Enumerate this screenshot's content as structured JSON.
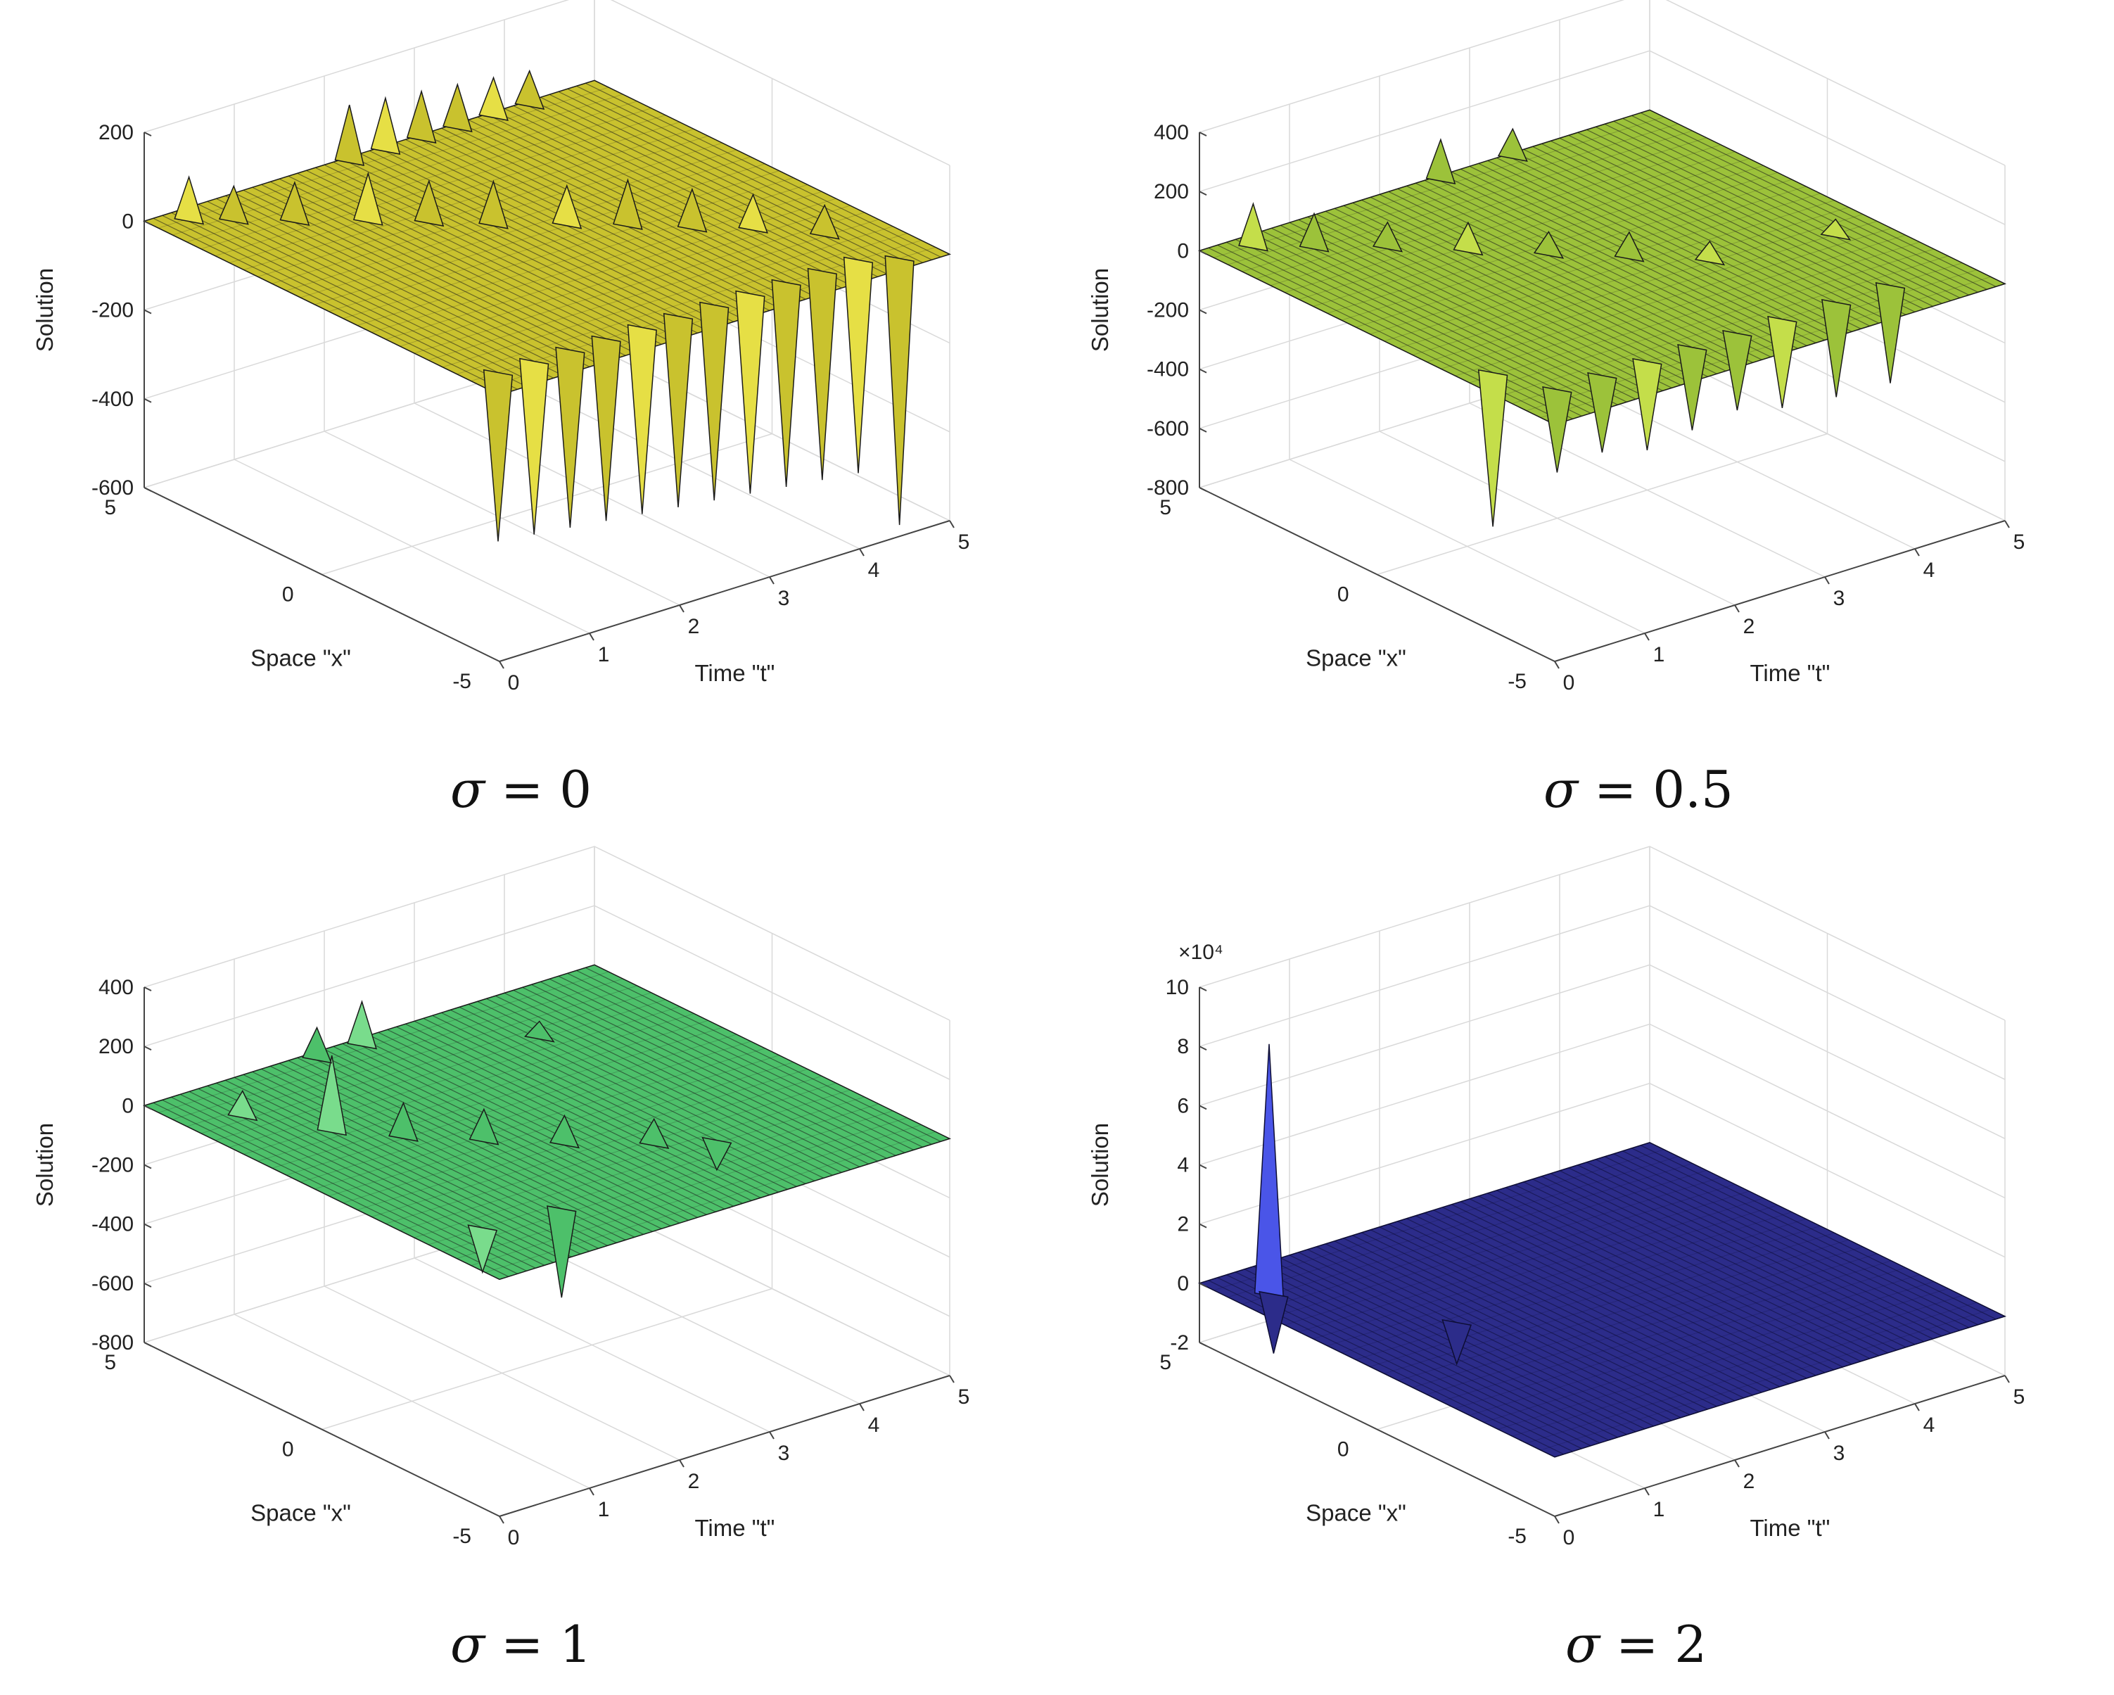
{
  "figure": {
    "captions": [
      {
        "symbol": "σ",
        "eq": " = ",
        "value": "0"
      },
      {
        "symbol": "σ",
        "eq": " = ",
        "value": "0.5"
      },
      {
        "symbol": "σ",
        "eq": " = ",
        "value": "1"
      },
      {
        "symbol": "σ",
        "eq": " = ",
        "value": "2"
      }
    ]
  },
  "chart_data": [
    {
      "type": "surface",
      "title": "",
      "caption": "σ = 0",
      "xlabel": "Space \"x\"",
      "ylabel": "Time \"t\"",
      "zlabel": "Solution",
      "xlim": [
        -5,
        5
      ],
      "ylim": [
        0,
        5
      ],
      "zlim": [
        -600,
        200
      ],
      "xticks": [
        "-5",
        "0",
        "5"
      ],
      "yticks": [
        "0",
        "1",
        "2",
        "3",
        "4",
        "5"
      ],
      "zticks": [
        "-600",
        "-400",
        "-200",
        "0",
        "200"
      ],
      "z_exponent": "",
      "colors": {
        "face": "#c9c22e",
        "face_light": "#e6df45",
        "edge": "#1a1a1a",
        "accent": "#4fc98a"
      },
      "spikes": [
        {
          "x": 4.5,
          "t": 0.3,
          "z": 100
        },
        {
          "x": 4.0,
          "t": 0.6,
          "z": 80
        },
        {
          "x": 3.3,
          "t": 1.0,
          "z": 90
        },
        {
          "x": 2.5,
          "t": 1.5,
          "z": 110
        },
        {
          "x": 1.8,
          "t": 1.9,
          "z": 95
        },
        {
          "x": 1.0,
          "t": 2.3,
          "z": 100
        },
        {
          "x": 0.2,
          "t": 2.8,
          "z": 90
        },
        {
          "x": -0.5,
          "t": 3.2,
          "z": 105
        },
        {
          "x": -1.3,
          "t": 3.6,
          "z": 90
        },
        {
          "x": -2.0,
          "t": 4.0,
          "z": 80
        },
        {
          "x": -3.0,
          "t": 4.4,
          "z": 70
        },
        {
          "x": 4.8,
          "t": 2.2,
          "z": 130
        },
        {
          "x": 4.8,
          "t": 2.6,
          "z": 120
        },
        {
          "x": 4.8,
          "t": 3.0,
          "z": 110
        },
        {
          "x": 4.8,
          "t": 3.4,
          "z": 100
        },
        {
          "x": 4.8,
          "t": 3.8,
          "z": 90
        },
        {
          "x": 4.8,
          "t": 4.2,
          "z": 80
        },
        {
          "x": -4.2,
          "t": 0.3,
          "z": -380
        },
        {
          "x": -4.2,
          "t": 0.7,
          "z": -390
        },
        {
          "x": -4.2,
          "t": 1.1,
          "z": -400
        },
        {
          "x": -4.2,
          "t": 1.5,
          "z": -410
        },
        {
          "x": -4.2,
          "t": 1.9,
          "z": -420
        },
        {
          "x": -4.2,
          "t": 2.3,
          "z": -430
        },
        {
          "x": -4.2,
          "t": 2.7,
          "z": -440
        },
        {
          "x": -4.2,
          "t": 3.1,
          "z": -450
        },
        {
          "x": -4.2,
          "t": 3.5,
          "z": -460
        },
        {
          "x": -4.2,
          "t": 3.9,
          "z": -470
        },
        {
          "x": -4.2,
          "t": 4.3,
          "z": -480
        },
        {
          "x": -4.6,
          "t": 4.6,
          "z": -600
        }
      ]
    },
    {
      "type": "surface",
      "title": "",
      "caption": "σ = 0.5",
      "xlabel": "Space \"x\"",
      "ylabel": "Time \"t\"",
      "zlabel": "Solution",
      "xlim": [
        -5,
        5
      ],
      "ylim": [
        0,
        5
      ],
      "zlim": [
        -800,
        400
      ],
      "xticks": [
        "-5",
        "0",
        "5"
      ],
      "yticks": [
        "0",
        "1",
        "2",
        "3",
        "4",
        "5"
      ],
      "zticks": [
        "-800",
        "-600",
        "-400",
        "-200",
        "0",
        "200",
        "400"
      ],
      "z_exponent": "",
      "colors": {
        "face": "#9cc23a",
        "face_light": "#c4de4a",
        "edge": "#1a1a1a",
        "accent": "#4fc98a"
      },
      "spikes": [
        {
          "x": 4.5,
          "t": 0.4,
          "z": 150
        },
        {
          "x": 3.8,
          "t": 0.8,
          "z": 120
        },
        {
          "x": 3.0,
          "t": 1.3,
          "z": 90
        },
        {
          "x": 2.0,
          "t": 1.8,
          "z": 100
        },
        {
          "x": 1.0,
          "t": 2.3,
          "z": 80
        },
        {
          "x": 0.0,
          "t": 2.8,
          "z": 90
        },
        {
          "x": -1.0,
          "t": 3.3,
          "z": 70
        },
        {
          "x": 4.8,
          "t": 2.6,
          "z": 140
        },
        {
          "x": 4.8,
          "t": 3.4,
          "z": 100
        },
        {
          "x": -1.5,
          "t": 4.5,
          "z": 60
        },
        {
          "x": -3.8,
          "t": 0.5,
          "z": -280
        },
        {
          "x": -3.8,
          "t": 1.0,
          "z": -260
        },
        {
          "x": -3.8,
          "t": 1.5,
          "z": -300
        },
        {
          "x": -3.8,
          "t": 2.0,
          "z": -280
        },
        {
          "x": -3.8,
          "t": 2.5,
          "z": -260
        },
        {
          "x": -3.8,
          "t": 3.0,
          "z": -300
        },
        {
          "x": -3.8,
          "t": 3.6,
          "z": -320
        },
        {
          "x": -3.8,
          "t": 4.2,
          "z": -330
        },
        {
          "x": -2.5,
          "t": 0.3,
          "z": -520
        }
      ]
    },
    {
      "type": "surface",
      "title": "",
      "caption": "σ = 1",
      "xlabel": "Space \"x\"",
      "ylabel": "Time \"t\"",
      "zlabel": "Solution",
      "xlim": [
        -5,
        5
      ],
      "ylim": [
        0,
        5
      ],
      "zlim": [
        -800,
        400
      ],
      "xticks": [
        "-5",
        "0",
        "5"
      ],
      "yticks": [
        "0",
        "1",
        "2",
        "3",
        "4",
        "5"
      ],
      "zticks": [
        "-800",
        "-600",
        "-400",
        "-200",
        "0",
        "200",
        "400"
      ],
      "z_exponent": "",
      "colors": {
        "face": "#4dc06a",
        "face_light": "#79dc8c",
        "edge": "#1a1a1a",
        "accent": "#3a8fc9"
      },
      "spikes": [
        {
          "x": 2.0,
          "t": 0.9,
          "z": 260
        },
        {
          "x": 1.0,
          "t": 1.3,
          "z": 120
        },
        {
          "x": 0.0,
          "t": 1.8,
          "z": 110
        },
        {
          "x": 3.5,
          "t": 0.5,
          "z": 90
        },
        {
          "x": -1.0,
          "t": 2.3,
          "z": 100
        },
        {
          "x": 4.7,
          "t": 1.8,
          "z": 110
        },
        {
          "x": 4.7,
          "t": 2.3,
          "z": 150
        },
        {
          "x": -2.0,
          "t": 2.9,
          "z": 90
        },
        {
          "x": 3.0,
          "t": 3.6,
          "z": 60
        },
        {
          "x": -3.0,
          "t": 0.6,
          "z": -150
        },
        {
          "x": -3.2,
          "t": 1.4,
          "z": -300
        },
        {
          "x": -2.5,
          "t": 3.4,
          "z": -100
        }
      ]
    },
    {
      "type": "surface",
      "title": "",
      "caption": "σ = 2",
      "xlabel": "Space \"x\"",
      "ylabel": "Time \"t\"",
      "zlabel": "Solution",
      "xlim": [
        -5,
        5
      ],
      "ylim": [
        0,
        5
      ],
      "zlim": [
        -2,
        10
      ],
      "xticks": [
        "-5",
        "0",
        "5"
      ],
      "yticks": [
        "0",
        "1",
        "2",
        "3",
        "4",
        "5"
      ],
      "zticks": [
        "-2",
        "0",
        "2",
        "4",
        "6",
        "8",
        "10"
      ],
      "z_exponent": "×10⁴",
      "colors": {
        "face": "#2c2c8a",
        "face_light": "#4a55e8",
        "edge": "#0d0d33",
        "accent": "#e8e03a"
      },
      "spikes": [
        {
          "x": 3.8,
          "t": 0.3,
          "z": 8.5
        },
        {
          "x": 3.8,
          "t": 0.35,
          "z": -2.0
        },
        {
          "x": 0.8,
          "t": 1.2,
          "z": -1.4
        }
      ]
    }
  ]
}
